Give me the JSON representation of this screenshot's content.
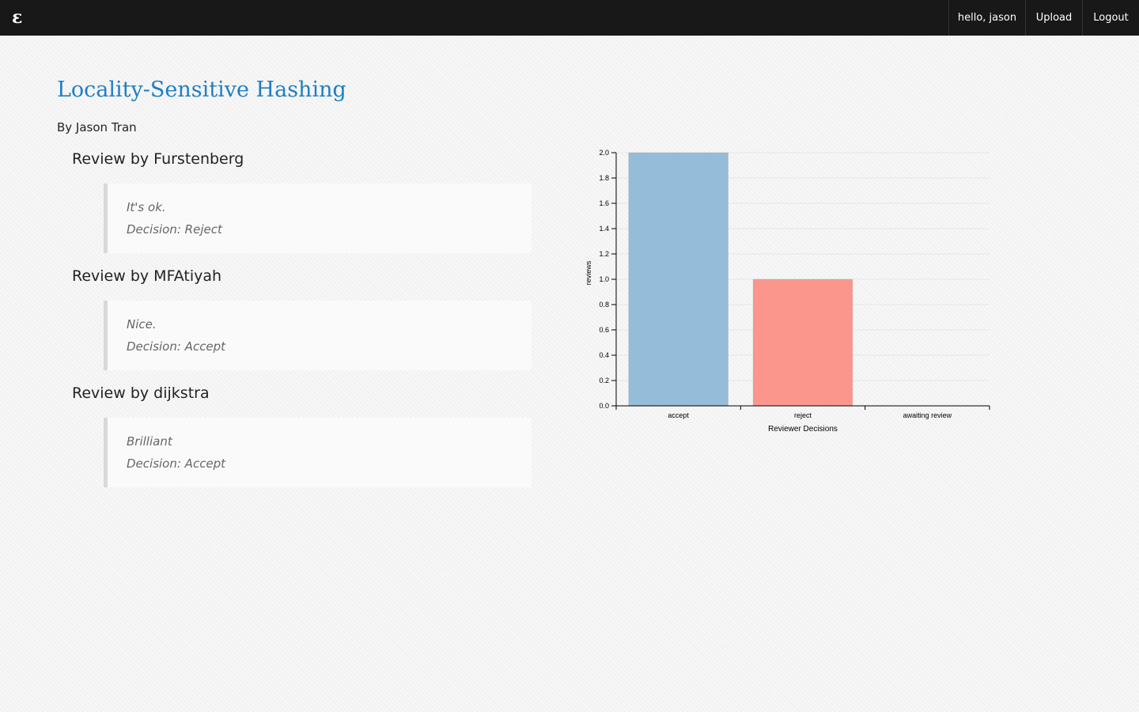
{
  "navbar": {
    "brand": "ε",
    "greeting": "hello, jason",
    "upload": "Upload",
    "logout": "Logout"
  },
  "paper": {
    "title": "Locality-Sensitive Hashing",
    "author": "By Jason Tran"
  },
  "reviews": [
    {
      "heading": "Review by Furstenberg",
      "comment": "It's ok.",
      "decision": "Decision: Reject"
    },
    {
      "heading": "Review by MFAtiyah",
      "comment": "Nice.",
      "decision": "Decision: Accept"
    },
    {
      "heading": "Review by dijkstra",
      "comment": "Brilliant",
      "decision": "Decision: Accept"
    }
  ],
  "chart_data": {
    "type": "bar",
    "categories": [
      "accept",
      "reject",
      "awaiting review"
    ],
    "values": [
      2,
      1,
      0
    ],
    "colors": [
      "#95bcd9",
      "#fa968c",
      "#cccccc"
    ],
    "xlabel": "Reviewer Decisions",
    "ylabel": "reviews",
    "ylim": [
      0,
      2
    ],
    "yticks": [
      "0.0",
      "0.2",
      "0.4",
      "0.6",
      "0.8",
      "1.0",
      "1.2",
      "1.4",
      "1.6",
      "1.8",
      "2.0"
    ],
    "grid": true,
    "legend": "none"
  }
}
